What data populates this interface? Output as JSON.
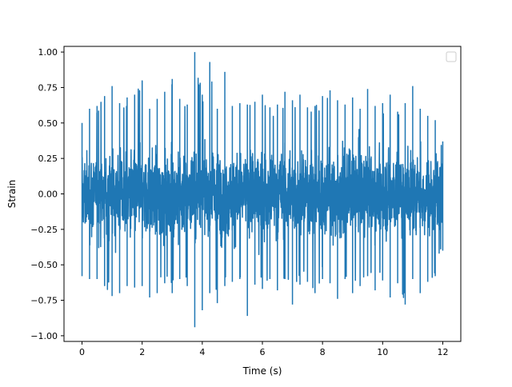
{
  "chart_data": {
    "type": "line",
    "title": "",
    "xlabel": "Time (s)",
    "ylabel": "Strain",
    "xlim": [
      -0.6,
      12.6
    ],
    "ylim": [
      -1.04,
      1.04
    ],
    "x_ticks": [
      0,
      2,
      4,
      6,
      8,
      10,
      12
    ],
    "x_tick_labels": [
      "0",
      "2",
      "4",
      "6",
      "8",
      "10",
      "12"
    ],
    "y_ticks": [
      -1.0,
      -0.75,
      -0.5,
      -0.25,
      0.0,
      0.25,
      0.5,
      0.75,
      1.0
    ],
    "y_tick_labels": [
      "−1.00",
      "−0.75",
      "−0.50",
      "−0.25",
      "0.00",
      "0.25",
      "0.50",
      "0.75",
      "1.00"
    ],
    "grid": false,
    "legend": {
      "placement": "upper-right",
      "entries": []
    },
    "series": [
      {
        "color": "#1f77b4",
        "x": [
          0,
          0.25,
          0.5,
          0.75,
          1,
          1.25,
          1.5,
          1.75,
          2,
          2.25,
          2.5,
          2.75,
          3,
          3.25,
          3.5,
          3.75,
          4,
          4.25,
          4.5,
          4.75,
          5,
          5.25,
          5.5,
          5.75,
          6,
          6.25,
          6.5,
          6.75,
          7,
          7.25,
          7.5,
          7.75,
          8,
          8.25,
          8.5,
          8.75,
          9,
          9.25,
          9.5,
          9.75,
          10,
          10.25,
          10.5,
          10.75,
          11,
          11.25,
          11.5,
          11.75,
          12
        ],
        "max": [
          0.5,
          0.6,
          0.62,
          0.69,
          0.76,
          0.64,
          0.68,
          0.7,
          0.8,
          0.6,
          0.67,
          0.72,
          0.81,
          0.67,
          0.63,
          1.0,
          0.7,
          0.93,
          0.6,
          0.86,
          0.62,
          0.64,
          0.63,
          0.65,
          0.7,
          0.61,
          0.63,
          0.72,
          0.66,
          0.7,
          0.61,
          0.62,
          0.69,
          0.73,
          0.66,
          0.63,
          0.68,
          0.6,
          0.74,
          0.62,
          0.64,
          0.7,
          0.58,
          0.64,
          0.76,
          0.6,
          0.55,
          0.52,
          0.37
        ],
        "min": [
          -0.58,
          -0.6,
          -0.6,
          -0.65,
          -0.72,
          -0.7,
          -0.65,
          -0.66,
          -0.65,
          -0.73,
          -0.7,
          -0.63,
          -0.7,
          -0.6,
          -0.65,
          -0.94,
          -0.82,
          -0.7,
          -0.77,
          -0.65,
          -0.62,
          -0.6,
          -0.86,
          -0.64,
          -0.67,
          -0.6,
          -0.68,
          -0.6,
          -0.78,
          -0.64,
          -0.62,
          -0.7,
          -0.6,
          -0.63,
          -0.74,
          -0.6,
          -0.7,
          -0.65,
          -0.58,
          -0.68,
          -0.61,
          -0.73,
          -0.63,
          -0.78,
          -0.6,
          -0.7,
          -0.62,
          -0.58,
          -0.4
        ],
        "note_sample_count": 2400
      }
    ]
  }
}
